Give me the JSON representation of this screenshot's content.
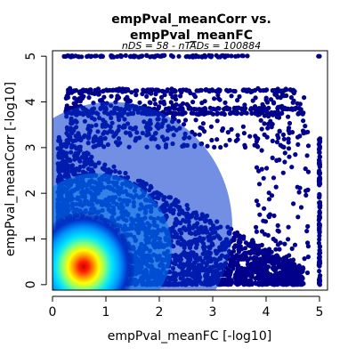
{
  "chart_data": {
    "type": "scatter",
    "title_line1": "empPval_meanCorr vs.",
    "title_line2": "empPval_meanFC",
    "subtitle": "nDS = 58 - nTADs = 100884",
    "xlabel": "empPval_meanFC [-log10]",
    "ylabel": "empPval_meanCorr [-log10]",
    "xlim": [
      0.0,
      5.15
    ],
    "ylim": [
      -0.12,
      5.12
    ],
    "x_ticks": [
      0,
      1,
      2,
      3,
      4,
      5
    ],
    "y_ticks": [
      0,
      1,
      2,
      3,
      4,
      5
    ],
    "point_color": "#00008B",
    "density_colors": [
      "#00008B",
      "#0033cc",
      "#0099ff",
      "#00e5ff",
      "#7fff7f",
      "#ffff00",
      "#ff9900",
      "#ff2200",
      "#cc0000"
    ],
    "density_peak": {
      "x": 0.45,
      "y": 0.2
    },
    "cap_rows": [
      {
        "y": 5.0,
        "x_from": 0.18,
        "x_to": 3.7
      },
      {
        "y": 4.25,
        "x_from": 0.3,
        "x_to": 4.6
      },
      {
        "y": 3.85,
        "x_from": 0.25,
        "x_to": 4.7
      },
      {
        "y": 3.75,
        "x_from": 0.25,
        "x_to": 4.7
      }
    ],
    "cap_column_x": 5.0,
    "extra_points_top_right": [
      [
        5.0,
        5.0
      ],
      [
        4.98,
        5.0
      ]
    ]
  }
}
